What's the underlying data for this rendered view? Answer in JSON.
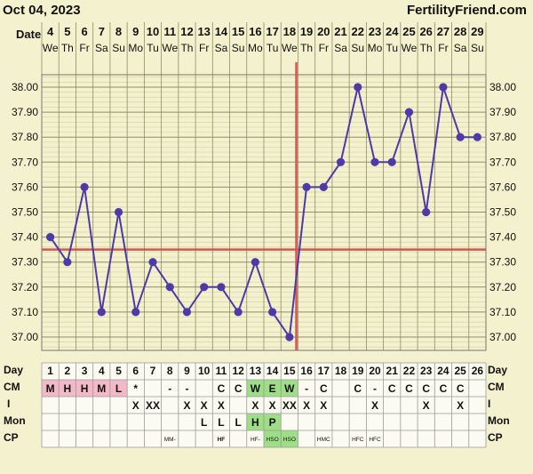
{
  "header": {
    "date": "Oct 04, 2023",
    "site": "FertilityFriend.com"
  },
  "row_labels": {
    "date": "Date",
    "day": "Day",
    "cm": "CM",
    "i": "I",
    "mon": "Mon",
    "cp": "CP"
  },
  "colors": {
    "line": "#4b3aa8",
    "coverline": "#d9534f",
    "background": "#f3f1ce",
    "grid_major": "#8f8f62",
    "grid_minor": "#d6d4a6",
    "fertile_pink": "#f5b8c9",
    "fertile_green": "#9ede86"
  },
  "chart_data": {
    "type": "line",
    "title": "",
    "xlabel": "Day",
    "ylabel": "",
    "dates": [
      "4",
      "5",
      "6",
      "7",
      "8",
      "9",
      "10",
      "11",
      "12",
      "13",
      "14",
      "15",
      "16",
      "17",
      "18",
      "19",
      "20",
      "21",
      "22",
      "23",
      "24",
      "25",
      "26",
      "27",
      "28",
      "29"
    ],
    "weekdays": [
      "We",
      "Th",
      "Fr",
      "Sa",
      "Su",
      "Mo",
      "Tu",
      "We",
      "Th",
      "Fr",
      "Sa",
      "Su",
      "Mo",
      "Tu",
      "We",
      "Th",
      "Fr",
      "Sa",
      "Su",
      "Mo",
      "Tu",
      "We",
      "Th",
      "Fr",
      "Sa",
      "Su"
    ],
    "cycle_days": [
      "1",
      "2",
      "3",
      "4",
      "5",
      "6",
      "7",
      "8",
      "9",
      "10",
      "11",
      "12",
      "13",
      "14",
      "15",
      "16",
      "17",
      "18",
      "19",
      "20",
      "21",
      "22",
      "23",
      "24",
      "25",
      "26"
    ],
    "y_ticks": [
      "38.00",
      "37.90",
      "37.80",
      "37.70",
      "37.60",
      "37.50",
      "37.40",
      "37.30",
      "37.20",
      "37.10",
      "37.00"
    ],
    "ylim": [
      36.95,
      38.05
    ],
    "series": [
      {
        "values": [
          37.4,
          37.3,
          37.6,
          37.1,
          37.5,
          37.1,
          37.3,
          37.2,
          37.1,
          37.2,
          37.2,
          37.1,
          37.3,
          37.1,
          37.0,
          37.6,
          37.6,
          37.7,
          38.0,
          37.7,
          37.7,
          37.9,
          37.5,
          38.0,
          37.8,
          37.8
        ]
      }
    ],
    "coverline": 37.35,
    "ovulation_day_index": 14,
    "grid": true
  },
  "rows": {
    "cm": [
      "M",
      "H",
      "H",
      "M",
      "L",
      "*",
      "",
      "-",
      "-",
      "",
      "C",
      "C",
      "W",
      "E",
      "W",
      "-",
      "C",
      "",
      "C",
      "-",
      "C",
      "C",
      "C",
      "C",
      "C",
      ""
    ],
    "i": [
      "",
      "",
      "",
      "",
      "",
      "X",
      "XX",
      "",
      "X",
      "X",
      "X",
      "",
      "X",
      "X",
      "XX",
      "X",
      "X",
      "",
      "",
      "X",
      "",
      "",
      "X",
      "",
      "X",
      ""
    ],
    "mon": [
      "",
      "",
      "",
      "",
      "",
      "",
      "",
      "",
      "",
      "L",
      "L",
      "L",
      "H",
      "P",
      "",
      "",
      "",
      "",
      "",
      "",
      "",
      "",
      "",
      "",
      "",
      ""
    ],
    "cp": [
      "",
      "",
      "",
      "",
      "",
      "",
      "",
      "MM-",
      "",
      "",
      "HF",
      "",
      "HF-",
      "HSO",
      "HSO",
      "",
      "HMC",
      "",
      "HFC",
      "HFC",
      "",
      "",
      "",
      "",
      "",
      ""
    ]
  }
}
